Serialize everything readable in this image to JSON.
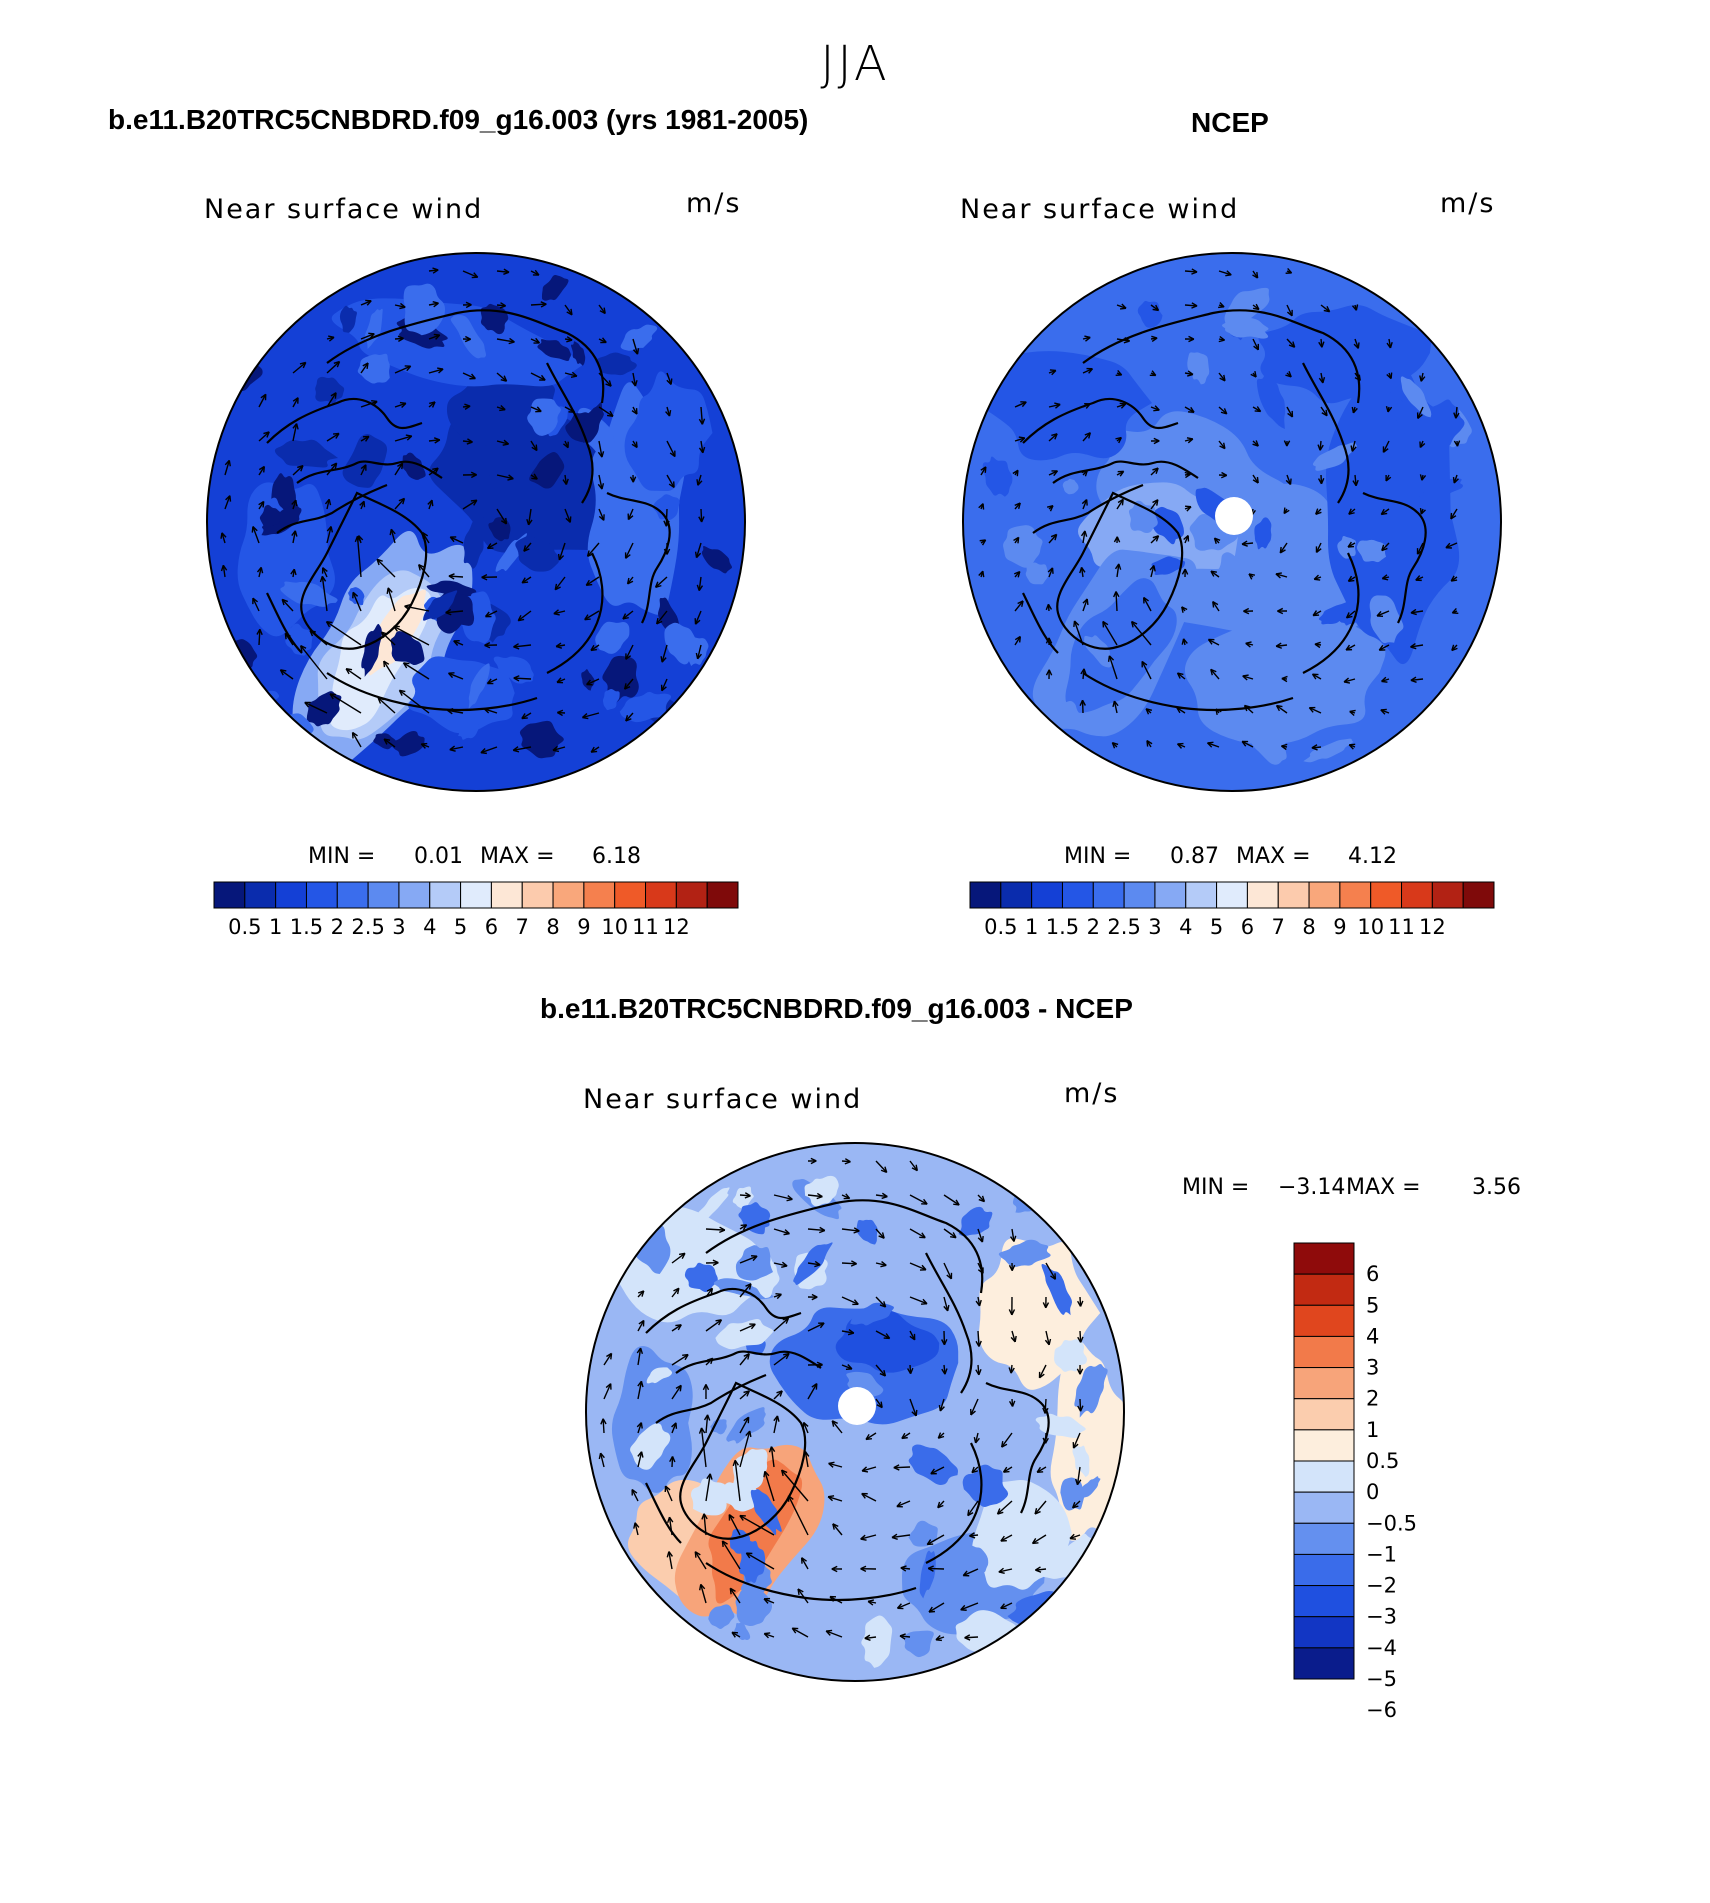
{
  "suptitle": "JJA",
  "colors": {
    "cmap_abs": [
      "#06177a",
      "#0a2cad",
      "#1440d6",
      "#2456e6",
      "#3a6ded",
      "#5c8af0",
      "#86a9f4",
      "#b4cbf8",
      "#e0ebfc",
      "#fde7d6",
      "#fccbad",
      "#f9a77b",
      "#f5804e",
      "#ef5a28",
      "#d8391a",
      "#b22214",
      "#7f0a0a"
    ],
    "cmap_diff": [
      "#0a1c8c",
      "#1236c4",
      "#1f50e0",
      "#3a6cea",
      "#6490ef",
      "#9ab7f4",
      "#d3e4fa",
      "#fdeedd",
      "#fbcdae",
      "#f7a47a",
      "#f27a4a",
      "#e0461e",
      "#c22a12",
      "#8f0b0b"
    ],
    "land_outline": "#000000"
  },
  "panels": [
    {
      "title": "b.e11.B20TRC5CNBDRD.f09_g16.003 (yrs 1981-2005)",
      "variable": "Near surface wind",
      "units": "m/s",
      "min_label": "MIN =",
      "min": "0.01",
      "max_label": "MAX =",
      "max": "6.18",
      "colorbar_ticks": [
        "0.5",
        "1",
        "1.5",
        "2",
        "2.5",
        "3",
        "4",
        "5",
        "6",
        "7",
        "8",
        "9",
        "10",
        "11",
        "12"
      ]
    },
    {
      "title": "NCEP",
      "variable": "Near surface wind",
      "units": "m/s",
      "min_label": "MIN =",
      "min": "0.87",
      "max_label": "MAX =",
      "max": "4.12",
      "colorbar_ticks": [
        "0.5",
        "1",
        "1.5",
        "2",
        "2.5",
        "3",
        "4",
        "5",
        "6",
        "7",
        "8",
        "9",
        "10",
        "11",
        "12"
      ]
    },
    {
      "title": "b.e11.B20TRC5CNBDRD.f09_g16.003 - NCEP",
      "variable": "Near surface wind",
      "units": "m/s",
      "min_label": "MIN =",
      "min": "−3.14",
      "max_label": "MAX =",
      "max": "3.56",
      "colorbar_ticks": [
        "6",
        "5",
        "4",
        "3",
        "2",
        "1",
        "0.5",
        "0",
        "−0.5",
        "−1",
        "−2",
        "−3",
        "−4",
        "−5",
        "−6"
      ]
    }
  ]
}
